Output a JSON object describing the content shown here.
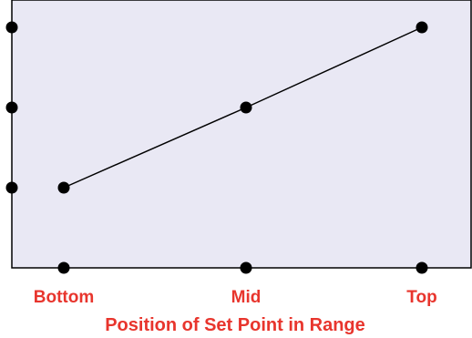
{
  "chart_data": {
    "type": "line",
    "title": "",
    "xlabel": "Position of Set Point in Range",
    "ylabel": "",
    "categories": [
      "Bottom",
      "Mid",
      "Top"
    ],
    "series": [
      {
        "values": [
          1,
          2,
          3
        ]
      }
    ],
    "ylim": [
      0,
      3
    ],
    "y_ticks": [
      1,
      2,
      3
    ],
    "grid": false,
    "legend": "none",
    "colors": {
      "plot_background": "#e9e8f4",
      "line": "#000000",
      "marker": "#000000",
      "label": "#e8352d"
    }
  }
}
